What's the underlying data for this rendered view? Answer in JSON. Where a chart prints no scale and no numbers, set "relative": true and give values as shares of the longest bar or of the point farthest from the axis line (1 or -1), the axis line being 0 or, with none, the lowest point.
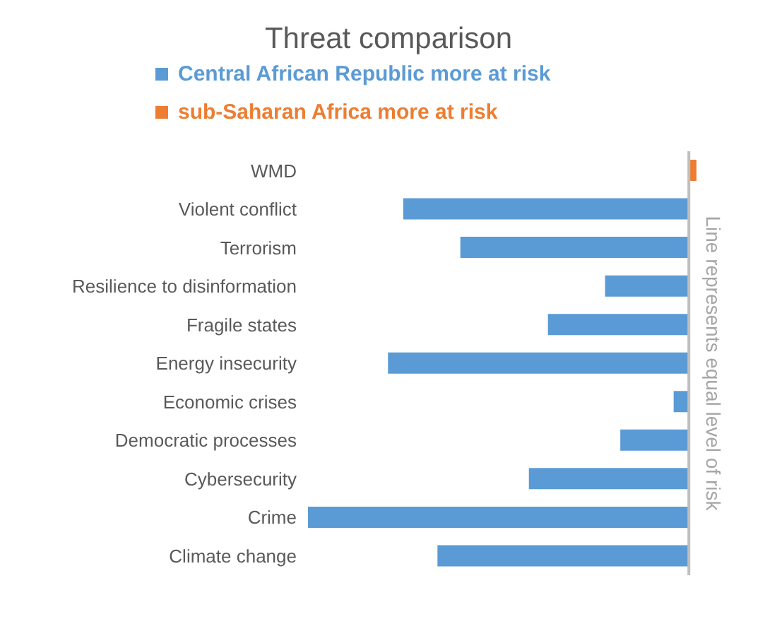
{
  "chart_data": {
    "type": "bar",
    "orientation": "horizontal",
    "stacked": true,
    "relative": true,
    "title": "Threat comparison",
    "categories": [
      "WMD",
      "Violent conflict",
      "Terrorism",
      "Resilience to disinformation",
      "Fragile states",
      "Energy insecurity",
      "Economic crises",
      "Democratic processes",
      "Cybersecurity",
      "Crime",
      "Climate change"
    ],
    "series": [
      {
        "name": "Central African Republic more at risk",
        "color": "#5b9bd5",
        "values": [
          null,
          -0.75,
          -0.6,
          -0.22,
          -0.37,
          -0.79,
          -0.04,
          -0.18,
          -0.42,
          -1,
          -0.66
        ]
      },
      {
        "name": "sub-Saharan Africa more at risk",
        "color": "#ed7d31",
        "values": [
          0.02,
          null,
          null,
          null,
          null,
          null,
          null,
          null,
          null,
          null,
          null
        ]
      }
    ],
    "ref_lines": [
      {
        "axis": "x",
        "value": 0,
        "label": "Line represents equal level of risk",
        "color": "#bfbfbf"
      }
    ],
    "legend": "top"
  }
}
